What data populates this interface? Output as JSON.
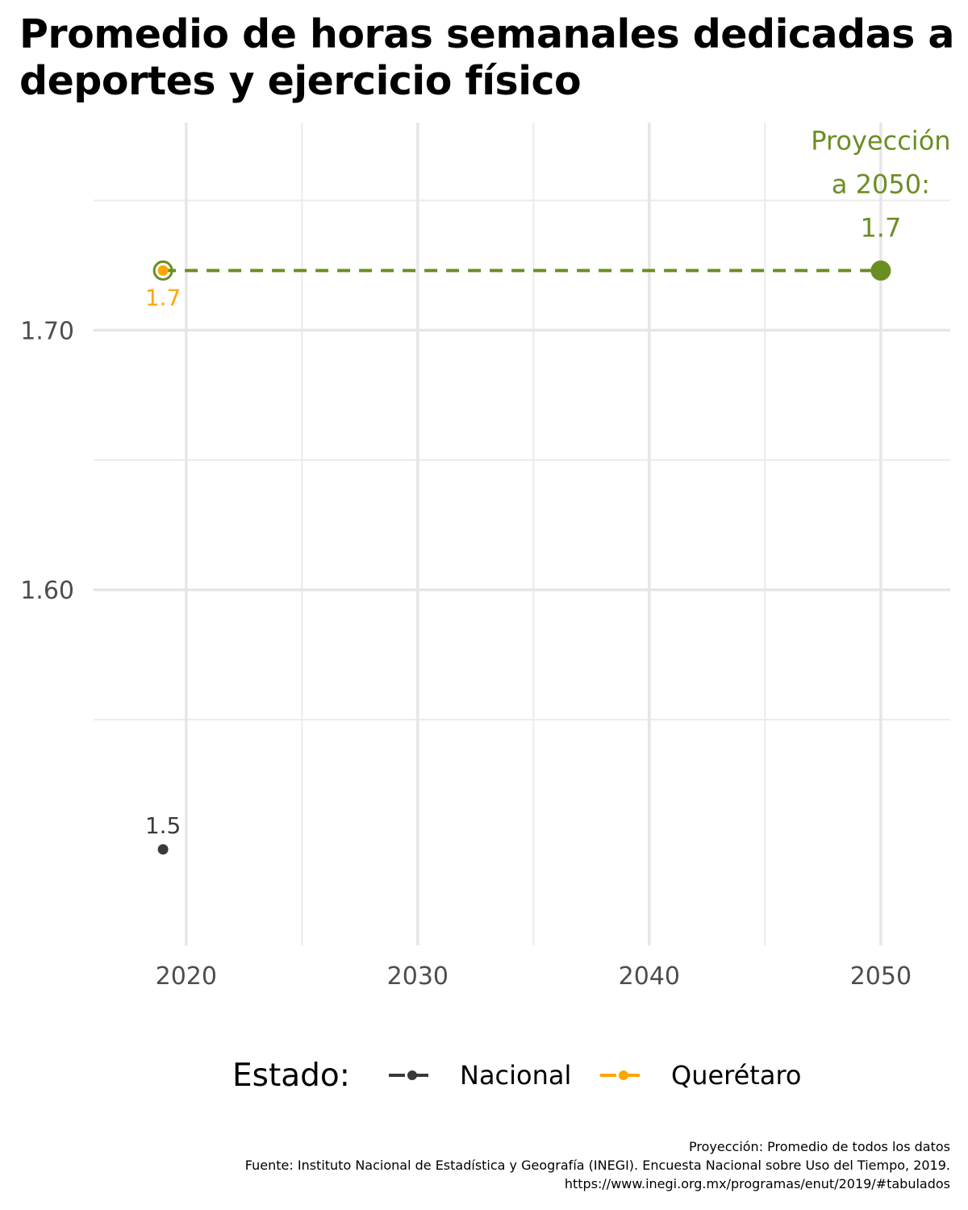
{
  "title": "Promedio de horas semanales dedicadas a deportes y ejercicio físico",
  "chart_data": {
    "type": "line",
    "xlim": [
      2016,
      2053
    ],
    "ylim": [
      1.463,
      1.78
    ],
    "x_ticks": [
      2020,
      2030,
      2040,
      2050
    ],
    "x_tick_labels": [
      "2020",
      "2030",
      "2040",
      "2050"
    ],
    "y_ticks": [
      1.6,
      1.7
    ],
    "y_tick_labels": [
      "1.60",
      "1.70"
    ],
    "grid": true,
    "series": [
      {
        "name": "Nacional",
        "color": "#3a3a3a",
        "points": [
          {
            "x": 2019,
            "y": 1.5,
            "label": "1.5"
          }
        ]
      },
      {
        "name": "Querétaro",
        "color": "#ffa500",
        "points": [
          {
            "x": 2019,
            "y": 1.723,
            "label": "1.7"
          }
        ]
      }
    ],
    "projection": {
      "color": "#6b8e23",
      "from": {
        "x": 2019,
        "y": 1.723
      },
      "to": {
        "x": 2050,
        "y": 1.723
      },
      "label_lines": [
        "Proyección",
        "a 2050:",
        "1.7"
      ]
    },
    "legend": {
      "position": "bottom",
      "title": "Estado:",
      "items": [
        {
          "label": "Nacional",
          "color": "#3a3a3a"
        },
        {
          "label": "Querétaro",
          "color": "#ffa500"
        }
      ]
    }
  },
  "caption": {
    "line1": "Proyección: Promedio de todos los datos",
    "line2": "Fuente: Instituto Nacional de Estadística y Geografía (INEGI). Encuesta Nacional sobre Uso del Tiempo, 2019.",
    "line3": "https://www.inegi.org.mx/programas/enut/2019/#tabulados"
  }
}
